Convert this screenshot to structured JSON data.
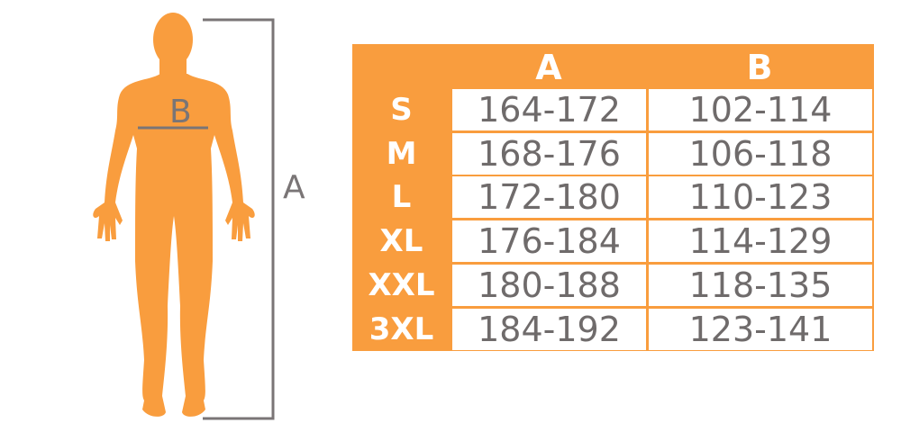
{
  "figure": {
    "height_label": "A",
    "chest_label": "B",
    "body_color": "#f99d3e",
    "line_color": "#7a7576"
  },
  "table": {
    "headers": [
      "A",
      "B"
    ],
    "rows": [
      {
        "size": "S",
        "a": "164-172",
        "b": "102-114"
      },
      {
        "size": "M",
        "a": "168-176",
        "b": "106-118"
      },
      {
        "size": "L",
        "a": "172-180",
        "b": "110-123"
      },
      {
        "size": "XL",
        "a": "176-184",
        "b": "114-129"
      },
      {
        "size": "XXL",
        "a": "180-188",
        "b": "118-135"
      },
      {
        "size": "3XL",
        "a": "184-192",
        "b": "123-141"
      }
    ]
  }
}
